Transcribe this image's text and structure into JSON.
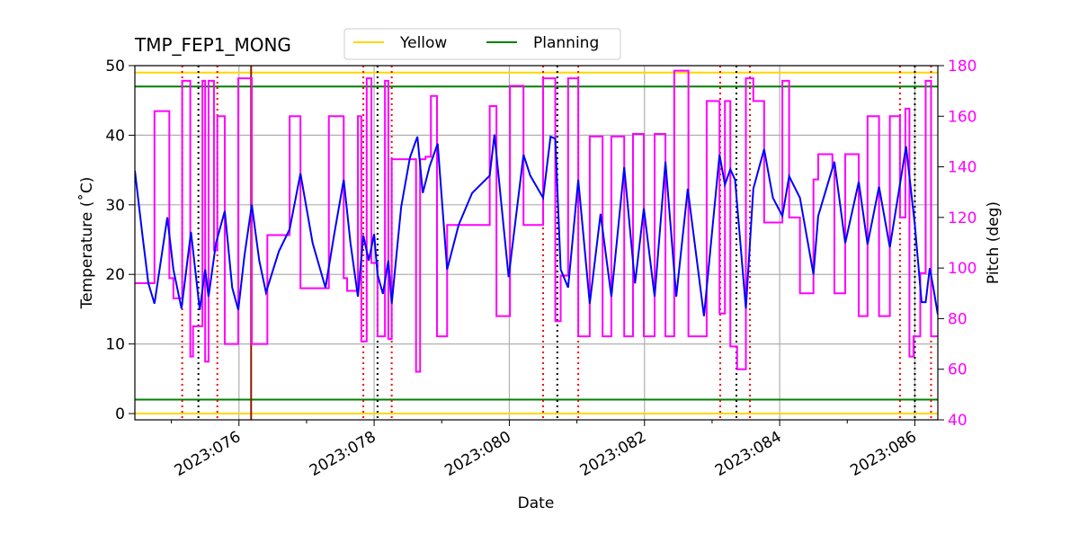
{
  "chart_data": {
    "type": "line",
    "title": "TMP_FEP1_MONG",
    "xlabel": "Date",
    "ylabel": "Temperature (˚C)",
    "y2label": "Pitch (deg)",
    "y2color": "#ff00ff",
    "xlim": [
      74.46,
      86.34
    ],
    "xticks": [
      {
        "value": 76,
        "label": "2023:076"
      },
      {
        "value": 78,
        "label": "2023:078"
      },
      {
        "value": 80,
        "label": "2023:080"
      },
      {
        "value": 82,
        "label": "2023:082"
      },
      {
        "value": 84,
        "label": "2023:084"
      },
      {
        "value": 86,
        "label": "2023:086"
      }
    ],
    "xminorticks": [
      75,
      77,
      79,
      81,
      83,
      85
    ],
    "ylim": [
      -0.9,
      50
    ],
    "yticks": [
      0,
      10,
      20,
      30,
      40,
      50
    ],
    "y2lim": [
      40,
      180
    ],
    "y2ticks": [
      40,
      60,
      80,
      100,
      120,
      140,
      160,
      180
    ],
    "grid": true,
    "legend": "upper center",
    "limit_lines": [
      {
        "name": "Yellow",
        "color": "#ffd700",
        "values": [
          0,
          49
        ]
      },
      {
        "name": "Planning",
        "color": "#008000",
        "values": [
          2,
          47
        ]
      }
    ],
    "vlines": [
      {
        "color": "#ff0000",
        "style": "dotted",
        "x": [
          75.16,
          75.68,
          77.84,
          78.26,
          80.5,
          81.02,
          83.12,
          83.56,
          85.78,
          86.24
        ]
      },
      {
        "color": "#000000",
        "style": "dotted",
        "x": [
          75.4,
          78.05,
          80.71,
          83.36,
          86.0
        ]
      },
      {
        "color": "#8b1a00",
        "style": "solid",
        "x": [
          76.18
        ]
      }
    ],
    "series": [
      {
        "color": "#ff00ff",
        "axis": "y2",
        "step": true,
        "x": [
          74.46,
          74.75,
          74.97,
          75.03,
          75.16,
          75.28,
          75.32,
          75.46,
          75.5,
          75.55,
          75.63,
          75.68,
          75.79,
          75.99,
          76.19,
          76.42,
          76.75,
          76.91,
          77.33,
          77.55,
          77.6,
          77.76,
          77.81,
          77.89,
          77.96,
          78.05,
          78.16,
          78.21,
          78.26,
          78.62,
          78.68,
          78.76,
          78.84,
          78.93,
          79.08,
          79.71,
          79.81,
          80.01,
          80.21,
          80.5,
          80.68,
          80.76,
          80.87,
          81.02,
          81.19,
          81.38,
          81.51,
          81.7,
          81.83,
          81.99,
          82.15,
          82.31,
          82.44,
          82.65,
          82.92,
          83.11,
          83.19,
          83.27,
          83.37,
          83.5,
          83.61,
          83.77,
          84.04,
          84.14,
          84.3,
          84.5,
          84.57,
          84.78,
          84.81,
          84.97,
          85.17,
          85.3,
          85.47,
          85.63,
          85.78,
          85.86,
          85.92,
          85.98,
          86.08,
          86.16,
          86.24,
          86.34
        ],
        "values": [
          94,
          162,
          96,
          88,
          174,
          65,
          77,
          174,
          63,
          174,
          107,
          160,
          70,
          175,
          70,
          113,
          160,
          92,
          160,
          96,
          91,
          160,
          71,
          175,
          102,
          73,
          174,
          72,
          143,
          59,
          143,
          144,
          168,
          73,
          117,
          164,
          81,
          172,
          117,
          175,
          79,
          97,
          175,
          73,
          152,
          73,
          152,
          73,
          153,
          73,
          153,
          73,
          178,
          73,
          166,
          82,
          166,
          69,
          60,
          175,
          166,
          118,
          174,
          120,
          90,
          135,
          145,
          140,
          90,
          145,
          81,
          160,
          81,
          160,
          120,
          163,
          65,
          73,
          98,
          174,
          73,
          73
        ]
      },
      {
        "color": "#0000ff",
        "axis": "y",
        "x": [
          74.46,
          74.57,
          74.66,
          74.75,
          74.94,
          75.03,
          75.15,
          75.29,
          75.42,
          75.5,
          75.55,
          75.66,
          75.79,
          75.9,
          75.99,
          76.08,
          76.19,
          76.3,
          76.4,
          76.59,
          76.75,
          76.91,
          77.09,
          77.28,
          77.41,
          77.55,
          77.65,
          77.76,
          77.84,
          77.92,
          78.0,
          78.05,
          78.13,
          78.21,
          78.26,
          78.4,
          78.53,
          78.64,
          78.72,
          78.82,
          78.94,
          79.08,
          79.25,
          79.45,
          79.71,
          79.78,
          79.99,
          80.21,
          80.31,
          80.5,
          80.61,
          80.68,
          80.76,
          80.87,
          81.02,
          81.19,
          81.35,
          81.51,
          81.7,
          81.86,
          81.99,
          82.15,
          82.31,
          82.47,
          82.64,
          82.88,
          83.11,
          83.19,
          83.27,
          83.34,
          83.5,
          83.61,
          83.77,
          83.9,
          84.04,
          84.14,
          84.3,
          84.5,
          84.57,
          84.81,
          84.97,
          85.17,
          85.3,
          85.47,
          85.63,
          85.87,
          86.0,
          86.1,
          86.16,
          86.22,
          86.27,
          86.34
        ],
        "values": [
          34.9,
          25.8,
          18.7,
          15.8,
          28.2,
          20.7,
          15.1,
          26.1,
          14.9,
          20.7,
          16.8,
          24.5,
          29.1,
          18.1,
          14.9,
          22.6,
          30.0,
          22.0,
          17.4,
          23.3,
          26.5,
          34.5,
          24.5,
          18.1,
          25.8,
          33.6,
          24.5,
          16.8,
          25.6,
          22.0,
          25.8,
          20.0,
          17.2,
          22.0,
          15.8,
          29.7,
          36.8,
          39.8,
          31.7,
          35.5,
          38.8,
          20.7,
          27.1,
          31.7,
          34.2,
          40.1,
          19.6,
          37.2,
          34.2,
          31.0,
          39.8,
          39.5,
          20.7,
          18.1,
          33.6,
          15.8,
          28.7,
          16.8,
          35.4,
          18.7,
          29.5,
          16.8,
          36.2,
          16.8,
          32.3,
          14.0,
          37.2,
          32.9,
          35.1,
          33.6,
          15.1,
          32.3,
          38.0,
          31.0,
          28.4,
          34.1,
          31.0,
          20.0,
          28.4,
          36.2,
          24.5,
          33.3,
          24.3,
          32.6,
          23.9,
          38.4,
          27.1,
          16.0,
          16.0,
          20.9,
          18.3,
          14.2
        ]
      }
    ]
  }
}
